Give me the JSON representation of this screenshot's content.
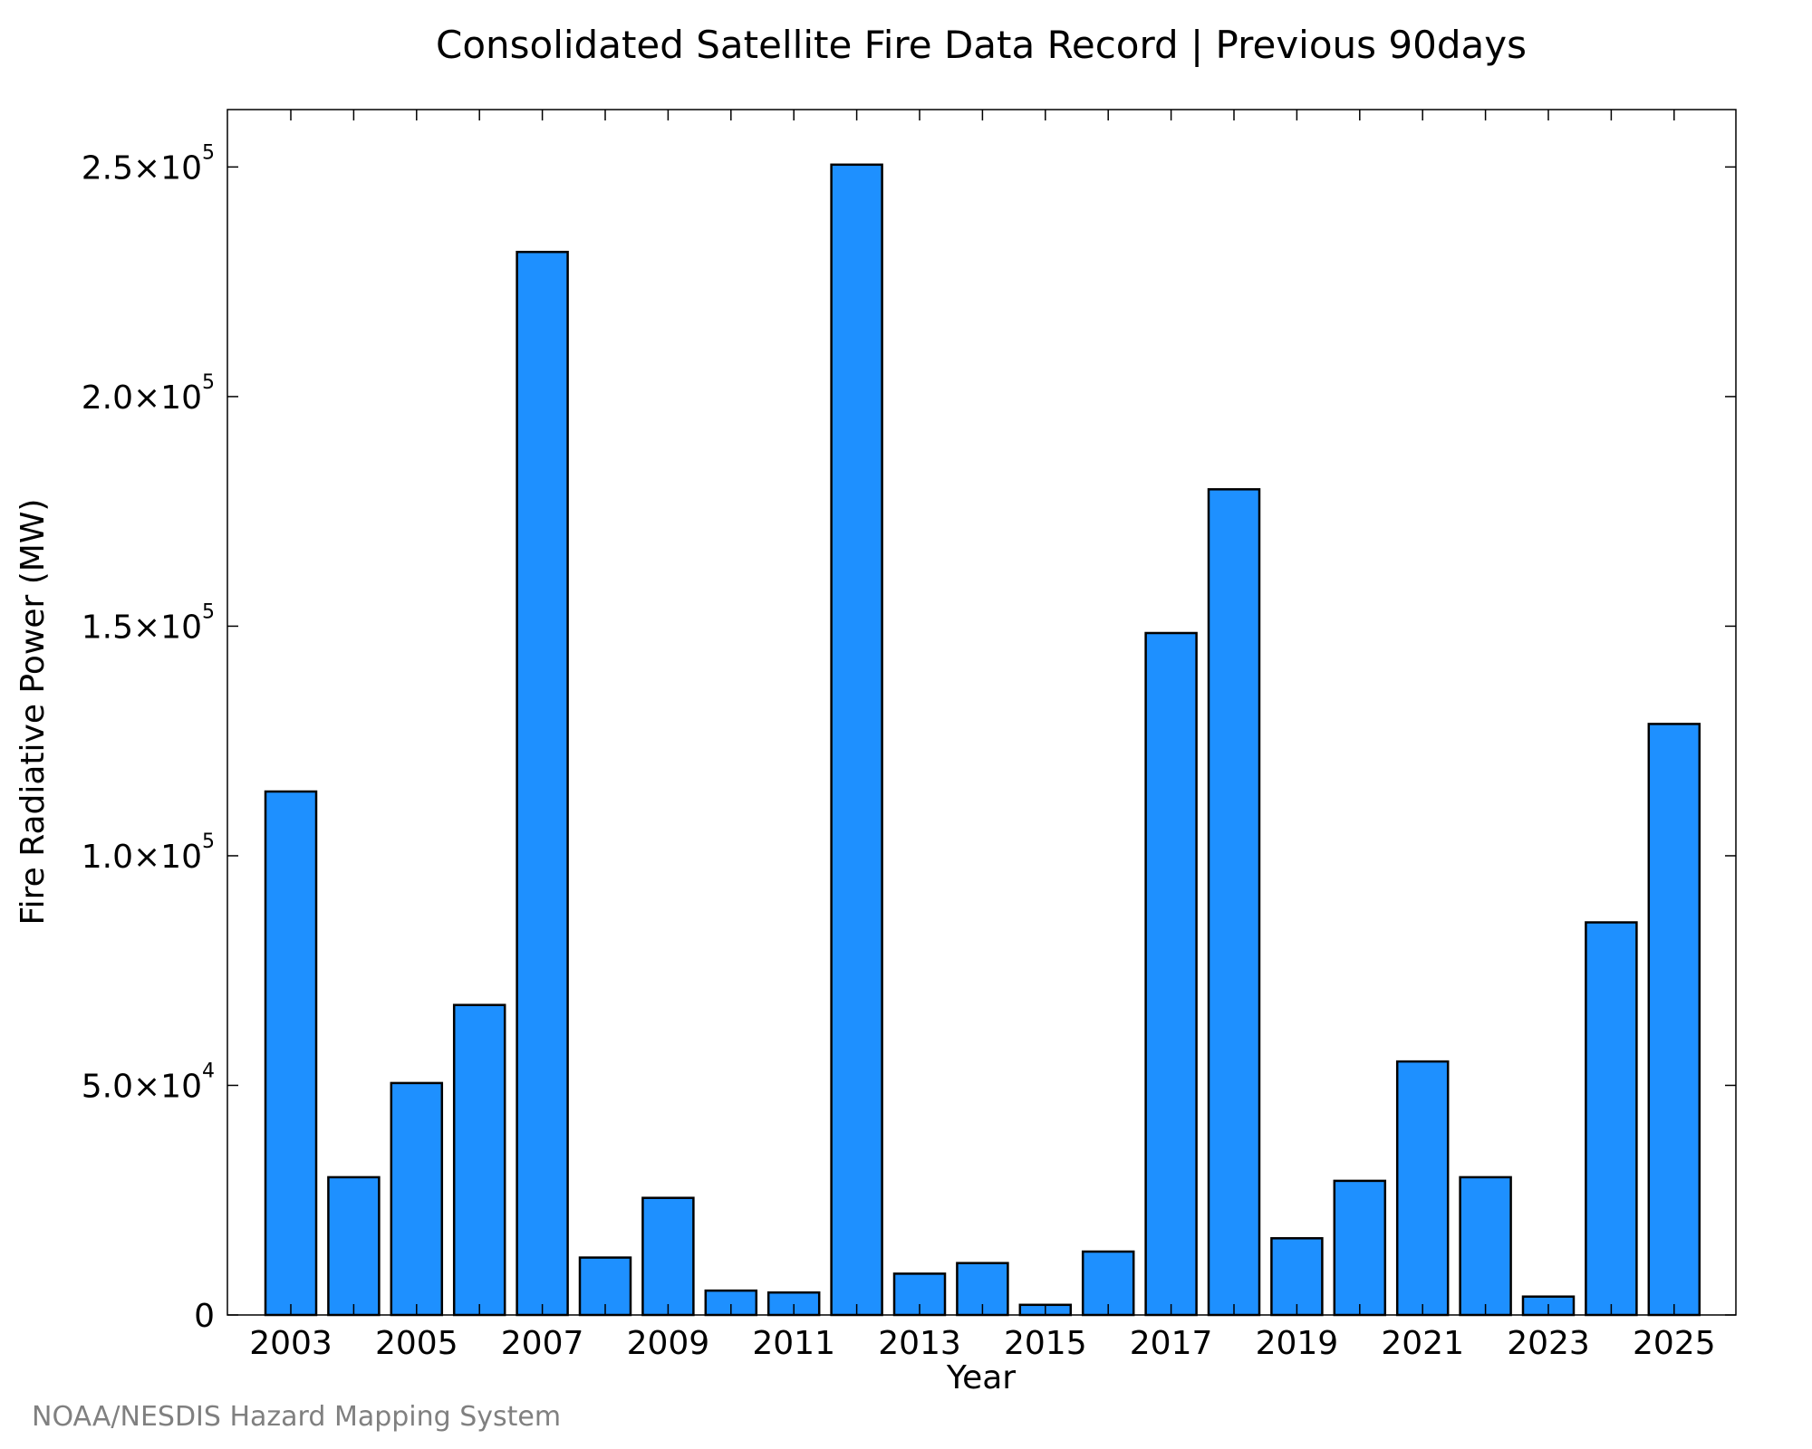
{
  "chart_data": {
    "type": "bar",
    "title": "Consolidated Satellite Fire Data Record | Previous 90days",
    "xlabel": "Year",
    "ylabel": "Fire Radiative Power (MW)",
    "credit": "NOAA/NESDIS Hazard Mapping System",
    "categories": [
      "2003",
      "2004",
      "2005",
      "2006",
      "2007",
      "2008",
      "2009",
      "2010",
      "2011",
      "2012",
      "2013",
      "2014",
      "2015",
      "2016",
      "2017",
      "2018",
      "2019",
      "2020",
      "2021",
      "2022",
      "2023",
      "2024",
      "2025"
    ],
    "values": [
      114000,
      30000,
      50500,
      67500,
      231500,
      12500,
      25500,
      5300,
      4900,
      250500,
      9000,
      11300,
      2200,
      13800,
      148500,
      179800,
      16700,
      29200,
      55200,
      30000,
      4000,
      85500,
      128700
    ],
    "xtick_labels": [
      "2003",
      "2005",
      "2007",
      "2009",
      "2011",
      "2013",
      "2015",
      "2017",
      "2019",
      "2021",
      "2023",
      "2025"
    ],
    "ylim": [
      0,
      262500
    ],
    "yticks": [
      {
        "value": 0,
        "mantissa": "0",
        "times": "",
        "base": "",
        "exp": ""
      },
      {
        "value": 50000,
        "mantissa": "5.0",
        "times": "×",
        "base": "10",
        "exp": "4"
      },
      {
        "value": 100000,
        "mantissa": "1.0",
        "times": "×",
        "base": "10",
        "exp": "5"
      },
      {
        "value": 150000,
        "mantissa": "1.5",
        "times": "×",
        "base": "10",
        "exp": "5"
      },
      {
        "value": 200000,
        "mantissa": "2.0",
        "times": "×",
        "base": "10",
        "exp": "5"
      },
      {
        "value": 250000,
        "mantissa": "2.5",
        "times": "×",
        "base": "10",
        "exp": "5"
      }
    ],
    "bar_color": "#1e90ff",
    "bar_edge_color": "#000000",
    "grid": false
  }
}
